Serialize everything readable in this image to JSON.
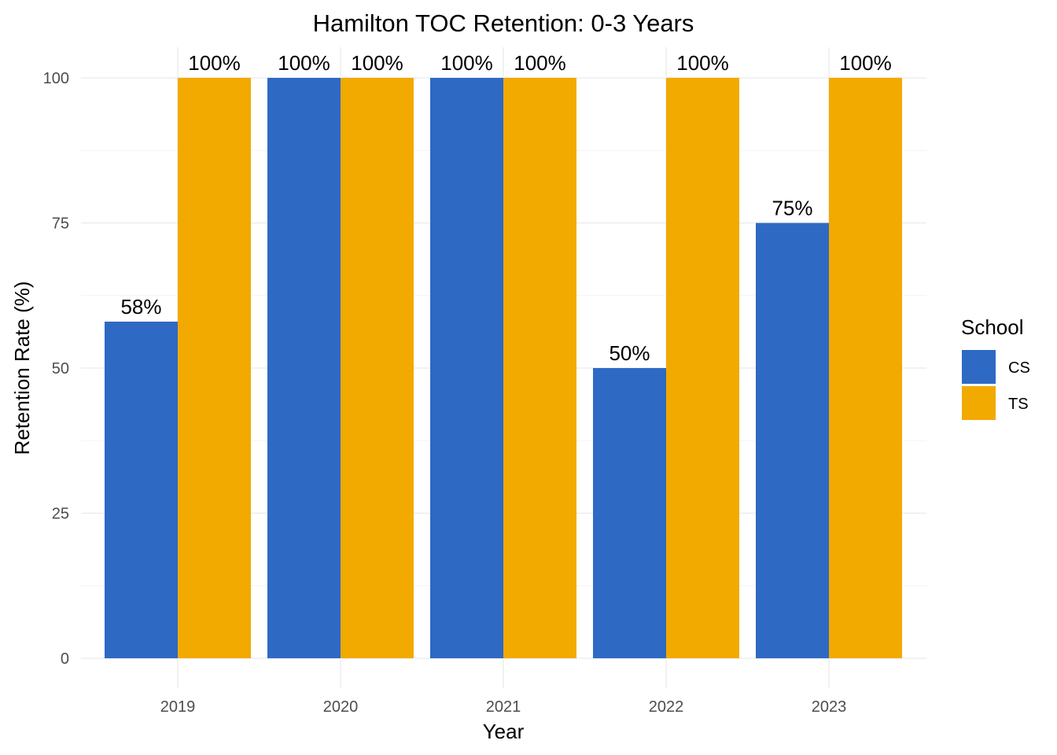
{
  "chart_data": {
    "type": "bar",
    "title": "Hamilton TOC Retention: 0-3 Years",
    "xlabel": "Year",
    "ylabel": "Retention Rate (%)",
    "categories": [
      "2019",
      "2020",
      "2021",
      "2022",
      "2023"
    ],
    "ylim": [
      0,
      100
    ],
    "yticks": [
      0,
      25,
      50,
      75,
      100
    ],
    "yticks_text": [
      "0",
      "25",
      "50",
      "75",
      "100"
    ],
    "grid": true,
    "legend": {
      "title": "School",
      "placement": "right"
    },
    "series": [
      {
        "name": "CS",
        "color": "#2E69C4",
        "values": [
          58,
          100,
          100,
          50,
          75
        ],
        "labels": [
          "58%",
          "100%",
          "100%",
          "50%",
          "75%"
        ]
      },
      {
        "name": "TS",
        "color": "#F2A900",
        "values": [
          100,
          100,
          100,
          100,
          100
        ],
        "labels": [
          "100%",
          "100%",
          "100%",
          "100%",
          "100%"
        ]
      }
    ]
  }
}
